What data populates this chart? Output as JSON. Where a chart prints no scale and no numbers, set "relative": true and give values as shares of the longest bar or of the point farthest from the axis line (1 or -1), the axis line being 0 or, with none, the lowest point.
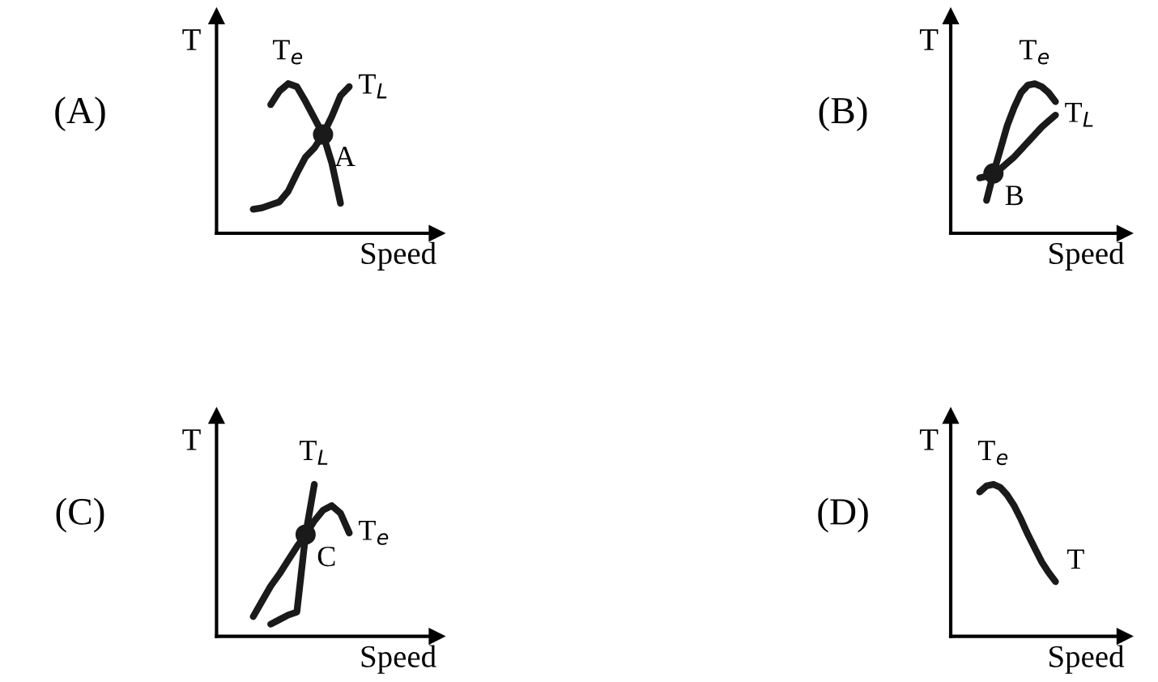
{
  "chart_data": [
    {
      "type": "line",
      "title": "(A)",
      "xlabel": "Speed",
      "ylabel": "T",
      "relative": true,
      "marker": "none",
      "line_style": "solid",
      "categories": [
        null,
        null,
        null,
        null,
        null,
        null,
        null,
        null,
        null,
        null,
        null,
        null
      ],
      "series": [
        {
          "name": "T$_{e}$",
          "color": "#1a1a1a",
          "values": [
            null,
            null,
            0.86,
            0.95,
            1.0,
            0.98,
            0.88,
            0.77,
            0.66,
            0.47,
            0.2,
            null
          ]
        },
        {
          "name": "T$_{L}$",
          "color": "#1a1a1a",
          "values": [
            0.16,
            0.17,
            0.19,
            0.21,
            0.28,
            0.4,
            0.51,
            0.57,
            0.66,
            0.78,
            0.92,
            0.98
          ]
        }
      ],
      "annotations": [
        "A"
      ]
    },
    {
      "type": "line",
      "title": "(B)",
      "xlabel": "Speed",
      "ylabel": "T",
      "relative": true,
      "marker": "none",
      "line_style": "solid",
      "categories": [
        null,
        null,
        null,
        null,
        null,
        null,
        null,
        null,
        null,
        null,
        null,
        null
      ],
      "series": [
        {
          "name": "T$_{e}$",
          "color": "#1a1a1a",
          "values": [
            null,
            0.22,
            0.4,
            0.56,
            0.72,
            0.84,
            0.94,
            0.99,
            1.0,
            0.98,
            0.94,
            0.88
          ]
        },
        {
          "name": "T$_{L}$",
          "color": "#1a1a1a",
          "values": [
            0.37,
            0.38,
            0.4,
            0.43,
            0.47,
            0.51,
            0.56,
            0.61,
            0.66,
            0.71,
            0.75,
            0.79
          ]
        }
      ],
      "annotations": [
        "B"
      ]
    },
    {
      "type": "line",
      "title": "(C)",
      "xlabel": "Speed",
      "ylabel": "T",
      "relative": true,
      "marker": "none",
      "line_style": "solid",
      "categories": [
        null,
        null,
        null,
        null,
        null,
        null,
        null,
        null,
        null,
        null,
        null,
        null
      ],
      "series": [
        {
          "name": "T$_{L}$",
          "color": "#1a1a1a",
          "values": [
            null,
            null,
            0.08,
            0.11,
            0.14,
            0.16,
            0.67,
            1.0,
            null,
            null,
            null,
            null
          ]
        },
        {
          "name": "T$_{e}$",
          "color": "#1a1a1a",
          "values": [
            0.13,
            0.23,
            0.33,
            0.41,
            0.5,
            0.59,
            0.67,
            0.76,
            0.83,
            0.86,
            0.81,
            0.68
          ]
        }
      ],
      "annotations": [
        "C"
      ]
    },
    {
      "type": "line",
      "title": "(D)",
      "xlabel": "Speed",
      "ylabel": "T",
      "relative": true,
      "marker": "none",
      "line_style": "solid",
      "categories": [
        null,
        null,
        null,
        null,
        null,
        null,
        null,
        null,
        null,
        null,
        null,
        null
      ],
      "series": [
        {
          "name": "T$_{e}$",
          "color": "#1a1a1a",
          "values": [
            0.95,
            0.99,
            1.0,
            0.98,
            0.93,
            0.86,
            0.77,
            0.67,
            0.58,
            0.49,
            0.42,
            0.36
          ]
        }
      ],
      "annotations": [
        "T"
      ]
    }
  ]
}
